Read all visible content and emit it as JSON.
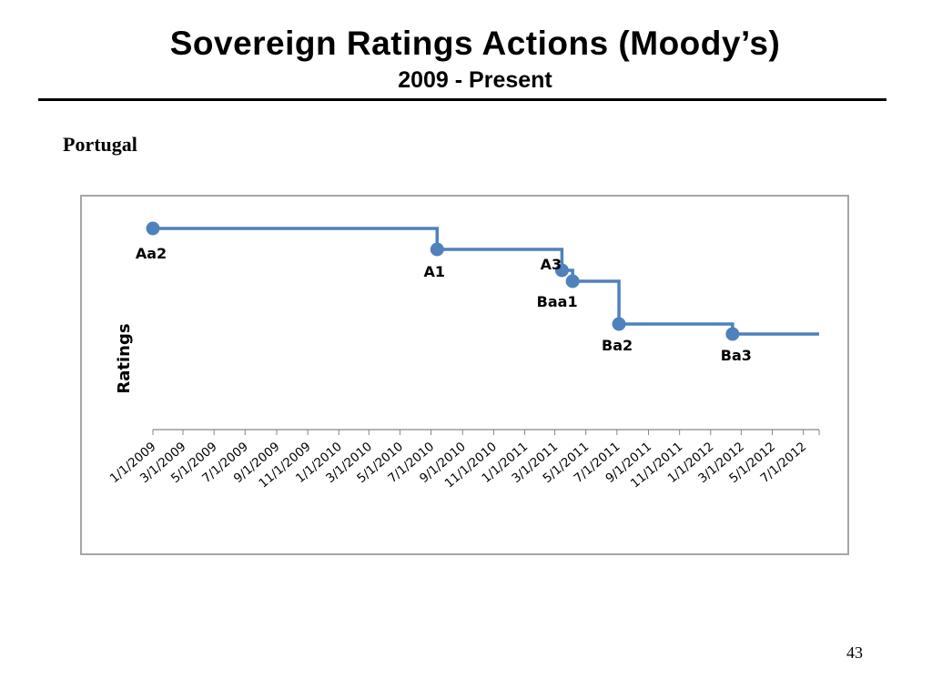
{
  "slide": {
    "title": "Sovereign Ratings Actions (Moody’s)",
    "subtitle": "2009 - Present",
    "country": "Portugal",
    "page_number": "43"
  },
  "colors": {
    "series": "#4f81bd",
    "axis": "#868686",
    "frame": "#a6a6a6"
  },
  "chart_data": {
    "type": "line",
    "title": "",
    "xlabel": "",
    "ylabel": "Ratings",
    "step": true,
    "grid": false,
    "legend": "none",
    "xlim": [
      "2009-01-01",
      "2012-08-01"
    ],
    "x_tick_labels": [
      "1/1/2009",
      "3/1/2009",
      "5/1/2009",
      "7/1/2009",
      "9/1/2009",
      "11/1/2009",
      "1/1/2010",
      "3/1/2010",
      "5/1/2010",
      "7/1/2010",
      "9/1/2010",
      "11/1/2010",
      "1/1/2011",
      "3/1/2011",
      "5/1/2011",
      "7/1/2011",
      "9/1/2011",
      "11/1/2011",
      "1/1/2012",
      "3/1/2012",
      "5/1/2012",
      "7/1/2012"
    ],
    "x_tick_dates": [
      "2009-01-01",
      "2009-03-01",
      "2009-05-01",
      "2009-07-01",
      "2009-09-01",
      "2009-11-01",
      "2010-01-01",
      "2010-03-01",
      "2010-05-01",
      "2010-07-01",
      "2010-09-01",
      "2010-11-01",
      "2011-01-01",
      "2011-03-01",
      "2011-05-01",
      "2011-07-01",
      "2011-09-01",
      "2011-11-01",
      "2012-01-01",
      "2012-03-01",
      "2012-05-01",
      "2012-07-01"
    ],
    "rating_scale": [
      "Aa2",
      "A1",
      "A3",
      "Baa1",
      "Ba2",
      "Ba3"
    ],
    "points": [
      {
        "date": "2009-01-01",
        "rating": "Aa2"
      },
      {
        "date": "2010-07-13",
        "rating": "A1"
      },
      {
        "date": "2011-03-15",
        "rating": "A3"
      },
      {
        "date": "2011-04-05",
        "rating": "Baa1"
      },
      {
        "date": "2011-07-05",
        "rating": "Ba2"
      },
      {
        "date": "2012-02-13",
        "rating": "Ba3"
      }
    ],
    "line_end_date": "2012-08-01"
  }
}
